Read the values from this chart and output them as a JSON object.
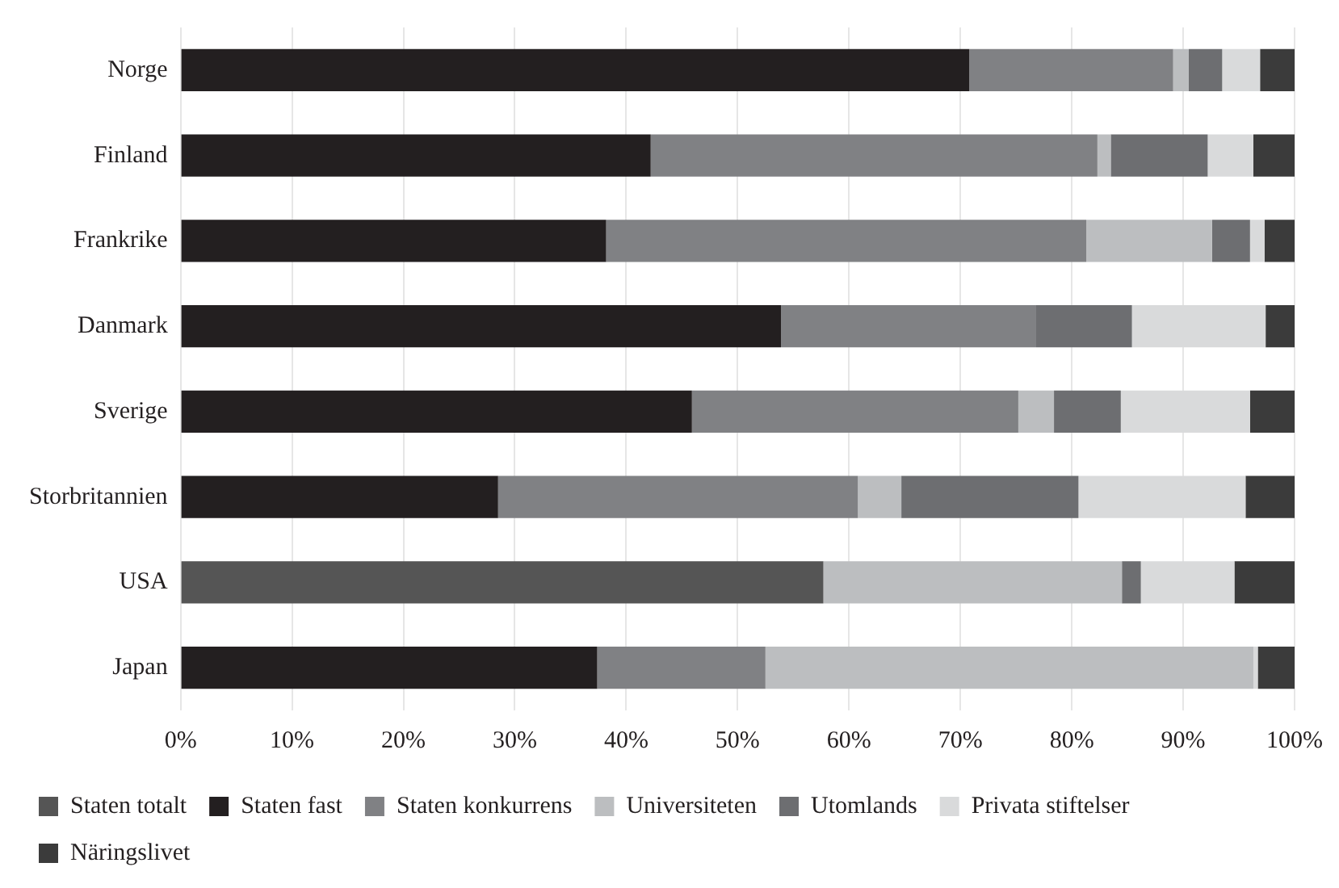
{
  "chart_data": {
    "type": "bar",
    "orientation": "horizontal",
    "stacked": true,
    "categories": [
      "Norge",
      "Finland",
      "Frankrike",
      "Danmark",
      "Sverige",
      "Storbritannien",
      "USA",
      "Japan"
    ],
    "series": [
      {
        "name": "Staten totalt",
        "color": "#555555",
        "values": [
          null,
          null,
          null,
          null,
          null,
          null,
          57.7,
          null
        ]
      },
      {
        "name": "Staten fast",
        "color": "#231f20",
        "values": [
          70.8,
          42.2,
          38.2,
          53.9,
          45.9,
          28.5,
          null,
          37.4
        ]
      },
      {
        "name": "Staten konkurrens",
        "color": "#808184",
        "values": [
          18.3,
          40.1,
          43.1,
          22.9,
          29.3,
          32.3,
          null,
          15.1
        ]
      },
      {
        "name": "Universiteten",
        "color": "#bcbec0",
        "values": [
          1.4,
          1.2,
          11.3,
          0,
          3.2,
          3.9,
          26.8,
          43.8
        ]
      },
      {
        "name": "Utomlands",
        "color": "#6d6e71",
        "values": [
          3.0,
          8.7,
          3.4,
          8.6,
          6.0,
          15.9,
          1.7,
          0
        ]
      },
      {
        "name": "Privata stiftelser",
        "color": "#d9dadb",
        "values": [
          3.4,
          4.1,
          1.3,
          12.0,
          11.6,
          15.0,
          8.4,
          0.4
        ]
      },
      {
        "name": "Näringslivet",
        "color": "#3b3b3b",
        "values": [
          3.1,
          3.7,
          2.7,
          2.6,
          4.0,
          4.4,
          5.4,
          3.3
        ]
      }
    ],
    "xlim": [
      0,
      100
    ],
    "xticks": [
      {
        "value": 0,
        "label": "0%"
      },
      {
        "value": 10,
        "label": "10%"
      },
      {
        "value": 20,
        "label": "20%"
      },
      {
        "value": 30,
        "label": "30%"
      },
      {
        "value": 40,
        "label": "40%"
      },
      {
        "value": 50,
        "label": "50%"
      },
      {
        "value": 60,
        "label": "60%"
      },
      {
        "value": 70,
        "label": "70%"
      },
      {
        "value": 80,
        "label": "80%"
      },
      {
        "value": 90,
        "label": "90%"
      },
      {
        "value": 100,
        "label": "100%"
      }
    ],
    "grid": "x",
    "legend": "bottom"
  }
}
